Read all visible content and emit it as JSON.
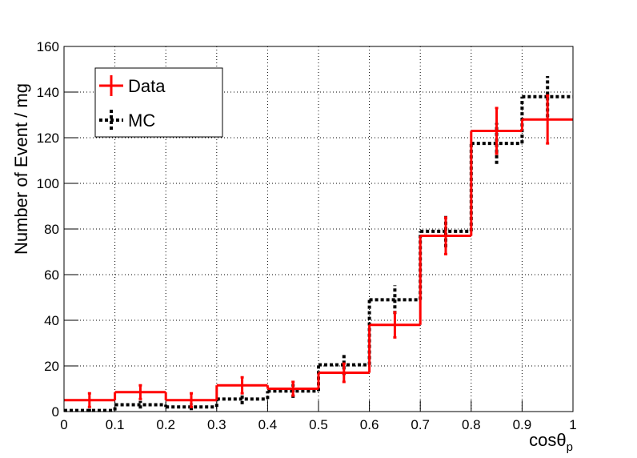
{
  "chart_data": {
    "type": "histogram",
    "bins": [
      0,
      0.1,
      0.2,
      0.3,
      0.4,
      0.5,
      0.6,
      0.7,
      0.8,
      0.9,
      1
    ],
    "series": [
      {
        "name": "Data",
        "color": "#ff0000",
        "style": "solid",
        "values": [
          5,
          8.5,
          5,
          11.5,
          10,
          17,
          38,
          77,
          123,
          128
        ],
        "errors": [
          3,
          3,
          3,
          3.5,
          3,
          4,
          5.5,
          8,
          10,
          10.5
        ]
      },
      {
        "name": "MC",
        "color": "#000000",
        "style": "dotted",
        "values": [
          0.5,
          3,
          2,
          5.5,
          9,
          20.5,
          49,
          79,
          117.5,
          138
        ],
        "errors": [
          0.7,
          1.7,
          1.4,
          2.3,
          3,
          4.5,
          6.3,
          7,
          9,
          9
        ]
      }
    ],
    "xlabel": {
      "text": "cosθ",
      "sub": "p"
    },
    "ylabel": "Number of Event / mg",
    "xlim": [
      0,
      1
    ],
    "xticks": [
      0,
      0.1,
      0.2,
      0.3,
      0.4,
      0.5,
      0.6,
      0.7,
      0.8,
      0.9,
      1
    ],
    "ylim": [
      0,
      160
    ],
    "yticks": [
      0,
      20,
      40,
      60,
      80,
      100,
      120,
      140,
      160
    ],
    "grid": true,
    "legend": "top-left"
  }
}
